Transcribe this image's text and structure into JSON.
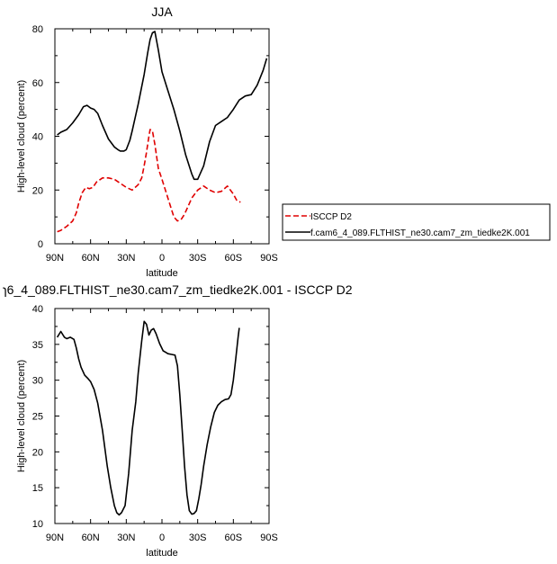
{
  "chart_data": [
    {
      "type": "line",
      "title": "JJA",
      "xlabel": "latitude",
      "ylabel": "High-level cloud (percent)",
      "xlim": [
        90,
        -90
      ],
      "ylim": [
        0,
        80
      ],
      "xticks": [
        90,
        60,
        30,
        0,
        -30,
        -60,
        -90
      ],
      "xticklabels": [
        "90N",
        "60N",
        "30N",
        "0",
        "30S",
        "60S",
        "90S"
      ],
      "yticks": [
        0,
        20,
        40,
        60,
        80
      ],
      "yticklabels": [
        "0",
        "20",
        "40",
        "60",
        "80"
      ],
      "grid": false,
      "legend_position": "right, outside the plot",
      "series": [
        {
          "name": "ISCCP D2",
          "color": "#e00000",
          "dash": true,
          "x": [
            88,
            85,
            80,
            75,
            72,
            70,
            67,
            64,
            61,
            58,
            55,
            50,
            45,
            40,
            35,
            30,
            25,
            20,
            17,
            15,
            13,
            11,
            10,
            8,
            6,
            3,
            0,
            -5,
            -10,
            -13,
            -16,
            -19,
            -22,
            -25,
            -30,
            -35,
            -40,
            -45,
            -50,
            -55,
            -60,
            -63,
            -66
          ],
          "y": [
            4.5,
            5,
            6.5,
            8.5,
            11.5,
            15,
            19,
            21,
            20.5,
            21,
            23,
            24.5,
            24.5,
            24,
            22.5,
            21,
            20,
            22,
            24.5,
            29,
            34,
            40,
            42.5,
            42,
            37,
            28,
            24,
            17,
            10,
            8.5,
            9,
            11,
            14,
            17,
            20,
            21.5,
            20,
            19,
            19.5,
            21.5,
            18.5,
            16,
            15.5
          ]
        },
        {
          "name": "f.cam6_4_089.FLTHIST_ne30.cam7_zm_tiedke2K.001",
          "color": "#000000",
          "dash": false,
          "x": [
            88,
            85,
            80,
            75,
            70,
            66,
            63,
            60,
            57,
            54,
            50,
            45,
            40,
            37,
            35,
            32,
            30,
            27,
            25,
            20,
            15,
            12,
            10,
            8,
            6,
            3,
            0,
            -5,
            -10,
            -15,
            -20,
            -25,
            -27,
            -30,
            -35,
            -40,
            -45,
            -50,
            -55,
            -60,
            -65,
            -70,
            -75,
            -80,
            -85,
            -88
          ],
          "y": [
            40.5,
            41.5,
            42.5,
            45,
            48,
            51,
            51.5,
            50.5,
            50,
            48.5,
            44,
            39,
            36,
            35,
            34.5,
            34.5,
            35,
            38.5,
            42,
            52,
            63,
            71,
            76,
            78.5,
            79,
            72,
            64,
            57,
            50,
            42,
            33,
            26,
            24,
            24,
            29,
            38,
            44,
            45.5,
            47,
            50,
            53.5,
            55,
            55.5,
            59,
            64.5,
            69
          ]
        }
      ]
    },
    {
      "type": "line",
      "title": "ɿ6_4_089.FLTHIST_ne30.cam7_zm_tiedke2K.001 - ISCCP D2",
      "xlabel": "latitude",
      "ylabel": "High-level cloud (percent)",
      "xlim": [
        90,
        -90
      ],
      "ylim": [
        10,
        40
      ],
      "xticks": [
        90,
        60,
        30,
        0,
        -30,
        -60,
        -90
      ],
      "xticklabels": [
        "90N",
        "60N",
        "30N",
        "0",
        "30S",
        "60S",
        "90S"
      ],
      "yticks": [
        10,
        15,
        20,
        25,
        30,
        35,
        40
      ],
      "yticklabels": [
        "10",
        "15",
        "20",
        "25",
        "30",
        "35",
        "40"
      ],
      "grid": false,
      "series": [
        {
          "color": "#000000",
          "dash": false,
          "x": [
            88,
            85,
            82,
            80,
            77,
            74,
            72,
            70,
            68,
            65,
            62,
            60,
            57,
            54,
            50,
            46,
            43,
            40,
            38,
            36,
            34,
            31,
            28,
            25,
            22,
            20,
            17,
            15,
            13,
            11,
            9,
            7,
            5,
            2,
            -1,
            -3,
            -5,
            -8,
            -11,
            -13,
            -15,
            -17,
            -19,
            -21,
            -23,
            -25,
            -27,
            -29,
            -31,
            -33,
            -35,
            -38,
            -41,
            -44,
            -47,
            -50,
            -53,
            -56,
            -58,
            -60,
            -62,
            -64,
            -65
          ],
          "y": [
            36,
            36.8,
            36,
            35.8,
            36,
            35.7,
            34.5,
            33,
            31.8,
            30.7,
            30.2,
            29.8,
            28.7,
            26.8,
            23,
            18,
            15,
            12.5,
            11.5,
            11.2,
            11.5,
            12.5,
            17,
            23,
            27,
            31,
            35.5,
            38.2,
            37.8,
            36.3,
            37,
            37.2,
            36.5,
            35.1,
            34.1,
            33.9,
            33.7,
            33.6,
            33.5,
            32,
            28,
            23,
            18,
            14,
            11.8,
            11.3,
            11.4,
            11.8,
            13.5,
            15.5,
            18,
            21,
            23.5,
            25.5,
            26.5,
            27,
            27.3,
            27.4,
            28,
            30,
            33,
            36,
            37.3
          ]
        }
      ]
    }
  ]
}
